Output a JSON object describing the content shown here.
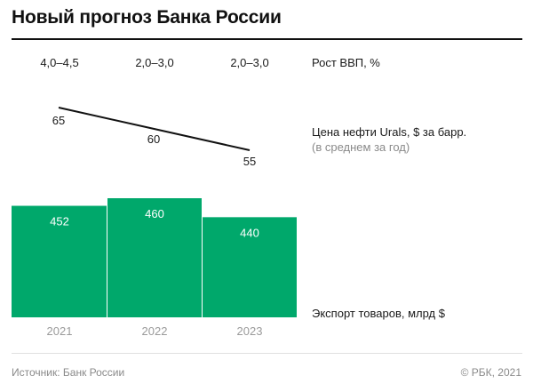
{
  "title": "Новый прогноз Банка России",
  "footer": {
    "source": "Источник: Банк России",
    "copyright": "© РБК, 2021"
  },
  "chart_data": {
    "type": "bar",
    "categories": [
      "2021",
      "2022",
      "2023"
    ],
    "gdp": {
      "label": "Рост ВВП, %",
      "values": [
        "4,0–4,5",
        "2,0–3,0",
        "2,0–3,0"
      ]
    },
    "oil": {
      "type": "line",
      "label": "Цена нефти Urals, $ за барр.",
      "sublabel": "(в среднем за год)",
      "values": [
        65,
        60,
        55
      ],
      "color": "#111111"
    },
    "exports": {
      "type": "bar",
      "label": "Экспорт товаров, млрд $",
      "values": [
        452,
        460,
        440
      ],
      "color": "#00a86b",
      "value_label_color": "#ffffff"
    },
    "tick_color": "#9a9a9a"
  }
}
